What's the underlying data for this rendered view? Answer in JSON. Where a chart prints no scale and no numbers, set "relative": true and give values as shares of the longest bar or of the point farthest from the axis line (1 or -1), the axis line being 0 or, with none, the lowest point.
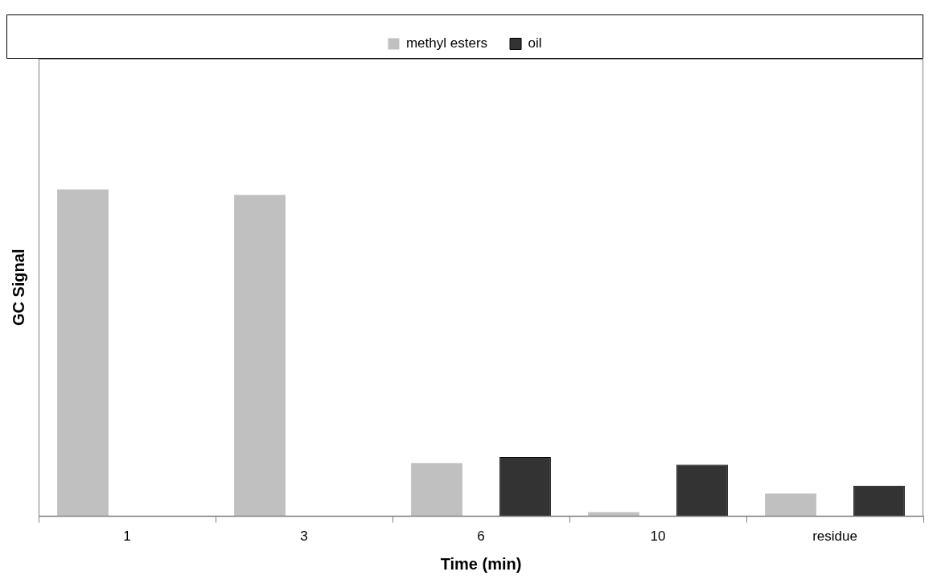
{
  "chart_data": {
    "type": "bar",
    "relative": true,
    "xlabel": "Time (min)",
    "ylabel": "GC Signal",
    "categories": [
      "1",
      "3",
      "6",
      "10",
      "residue"
    ],
    "series": [
      {
        "name": "methyl esters",
        "color": "#c0c0c0",
        "values": [
          1,
          0.983,
          0.162,
          0.012,
          0.069
        ]
      },
      {
        "name": "oil",
        "color": "#333333",
        "values": [
          null,
          null,
          0.181,
          0.158,
          0.093
        ]
      }
    ],
    "legend": "top",
    "grid": false
  }
}
